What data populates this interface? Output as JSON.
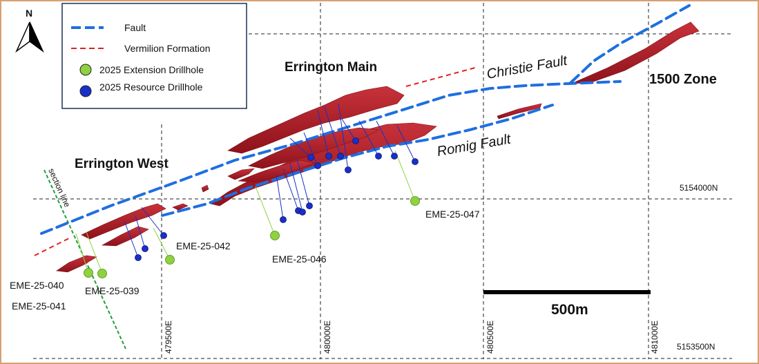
{
  "north_arrow": {
    "label": "N"
  },
  "legend": {
    "items": [
      {
        "label": "Fault",
        "color": "#1e6fe0",
        "symbol": "dashed-line"
      },
      {
        "label": "Vermilion Formation",
        "color": "#e02020",
        "symbol": "dashed-line"
      },
      {
        "label": "2025 Extension Drillhole",
        "color": "#8fd13f",
        "symbol": "circle"
      },
      {
        "label": "2025 Resource Drillhole",
        "color": "#1a2fc9",
        "symbol": "circle"
      }
    ]
  },
  "area_labels": {
    "errington_main": "Errington Main",
    "errington_west": "Errington West",
    "zone_1500": "1500 Zone"
  },
  "fault_labels": {
    "christie": "Christie Fault",
    "romig": "Romig Fault"
  },
  "section_line_label": "section line",
  "drillhole_labels": {
    "eme_040": "EME-25-040",
    "eme_041": "EME-25-041",
    "eme_039": "EME-25-039",
    "eme_042": "EME-25-042",
    "eme_046": "EME-25-046",
    "eme_047": "EME-25-047"
  },
  "grid": {
    "eastings": [
      "479500E",
      "480000E",
      "480500E",
      "481000E"
    ],
    "northings": [
      "5154000N",
      "5153500N"
    ]
  },
  "scale_bar": {
    "label": "500m"
  },
  "colors": {
    "orebody": "#b01a24",
    "fault": "#1e6fe0",
    "vermilion": "#e02020",
    "extension_hole": "#8fd13f",
    "resource_hole": "#1a2fc9",
    "section_line": "#1f9e3a",
    "frame": "#d9a070"
  }
}
